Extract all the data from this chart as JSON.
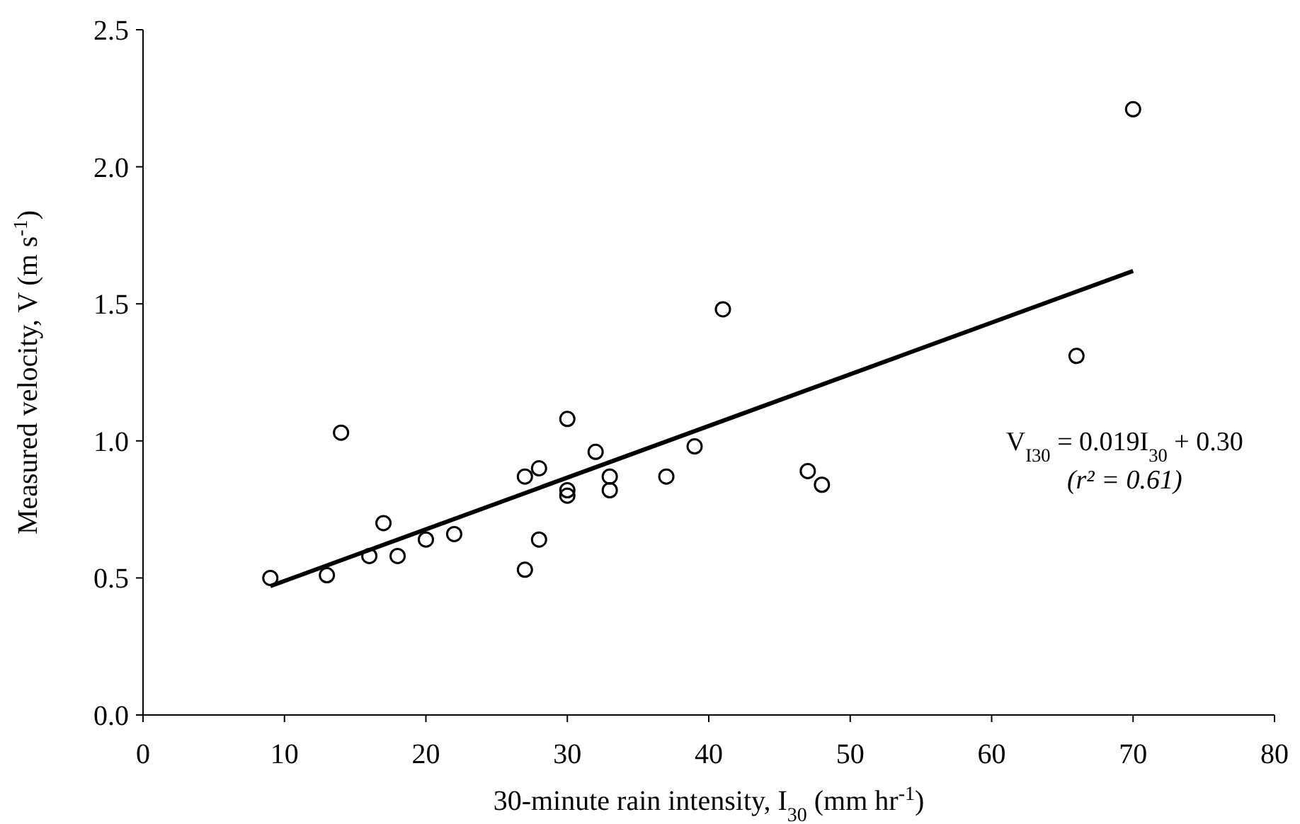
{
  "chart_data": {
    "type": "scatter",
    "xlabel": "30-minute rain intensity, I$_{30}$ (mm hr$^{-1}$)",
    "ylabel": "Measured velocity, V (m s$^{-1}$)",
    "xlim": [
      0,
      80
    ],
    "xticks": [
      0,
      10,
      20,
      30,
      40,
      50,
      60,
      70,
      80
    ],
    "ylim": [
      0,
      2.5
    ],
    "yticks": [
      {
        "value": 0,
        "label": "0.0"
      },
      {
        "value": 0.5,
        "label": "0.5"
      },
      {
        "value": 1,
        "label": "1.0"
      },
      {
        "value": 1.5,
        "label": "1.5"
      },
      {
        "value": 2,
        "label": "2.0"
      },
      {
        "value": 2.5,
        "label": "2.5"
      }
    ],
    "grid": false,
    "series": [
      {
        "color": "#000000",
        "marker": "circle",
        "x": [
          9,
          13,
          14,
          16,
          17,
          18,
          20,
          22,
          27,
          27,
          28,
          28,
          30,
          30,
          30,
          32,
          33,
          33,
          37,
          39,
          41,
          47,
          48,
          66,
          70
        ],
        "values": [
          0.5,
          0.51,
          1.03,
          0.58,
          0.7,
          0.58,
          0.64,
          0.66,
          0.87,
          0.53,
          0.9,
          0.64,
          1.08,
          0.82,
          0.8,
          0.96,
          0.87,
          0.82,
          0.87,
          0.98,
          1.48,
          0.89,
          0.84,
          1.31,
          2.21
        ]
      },
      {
        "type": "line",
        "color": "#000000",
        "line_style": "solid",
        "marker": "none",
        "x": [
          9,
          70
        ],
        "values": [
          0.47,
          1.62
        ]
      }
    ],
    "annotations": [
      "V$_{I30}$ = 0.019I$_{30}$ + 0.30",
      "(r² = 0.61)"
    ]
  }
}
